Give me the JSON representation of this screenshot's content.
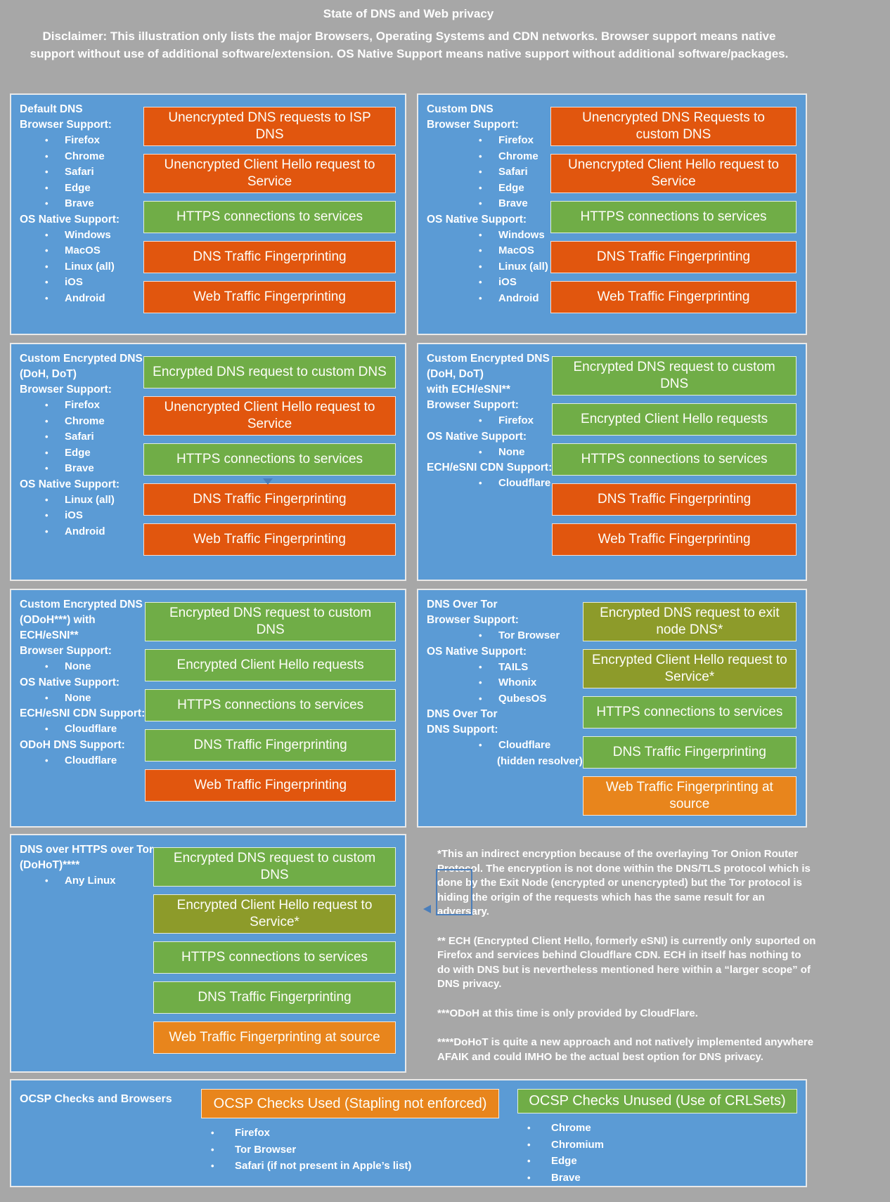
{
  "title": "State of DNS and Web privacy",
  "disclaimer": "Disclaimer: This illustration only lists the major Browsers, Operating Systems and CDN networks. Browser support means native support without use of additional software/extension. OS Native Support means native support without additional software/packages.",
  "colors": {
    "background": "#a7a7a7",
    "panel_blue": "#5b9bd5",
    "bar_bad": "#e1560e",
    "bar_good": "#70ad47",
    "bar_indirect": "#8d9b2a",
    "bar_warn": "#e8851c",
    "artifact_blue": "#4a7ebb",
    "text": "#ffffff"
  },
  "panels": [
    {
      "name": "default-dns",
      "labels": [
        [
          "h",
          "Default DNS"
        ],
        [
          "h",
          "Browser Support:"
        ],
        [
          "b",
          "Firefox"
        ],
        [
          "b",
          "Chrome"
        ],
        [
          "b",
          "Safari"
        ],
        [
          "b",
          "Edge"
        ],
        [
          "b",
          "Brave"
        ],
        [
          "h",
          "OS Native Support:"
        ],
        [
          "b",
          "Windows"
        ],
        [
          "b",
          "MacOS"
        ],
        [
          "b",
          "Linux (all)"
        ],
        [
          "b",
          "iOS"
        ],
        [
          "b",
          "Android"
        ]
      ],
      "bars": [
        [
          "Unencrypted DNS requests to ISP DNS",
          "bad"
        ],
        [
          "Unencrypted Client Hello request to Service",
          "bad"
        ],
        [
          "HTTPS connections to services",
          "good"
        ],
        [
          "DNS Traffic Fingerprinting",
          "bad"
        ],
        [
          "Web Traffic Fingerprinting",
          "bad"
        ]
      ]
    },
    {
      "name": "custom-dns",
      "labels": [
        [
          "h",
          "Custom DNS"
        ],
        [
          "h",
          "Browser Support:"
        ],
        [
          "b",
          "Firefox"
        ],
        [
          "b",
          "Chrome"
        ],
        [
          "b",
          "Safari"
        ],
        [
          "b",
          "Edge"
        ],
        [
          "b",
          "Brave"
        ],
        [
          "h",
          "OS Native Support:"
        ],
        [
          "b",
          "Windows"
        ],
        [
          "b",
          "MacOS"
        ],
        [
          "b",
          "Linux (all)"
        ],
        [
          "b",
          "iOS"
        ],
        [
          "b",
          "Android"
        ]
      ],
      "bars": [
        [
          "Unencrypted DNS Requests to custom DNS",
          "bad"
        ],
        [
          "Unencrypted Client Hello request to Service",
          "bad"
        ],
        [
          "HTTPS connections to services",
          "good"
        ],
        [
          "DNS Traffic Fingerprinting",
          "bad"
        ],
        [
          "Web Traffic Fingerprinting",
          "bad"
        ]
      ]
    },
    {
      "name": "custom-encrypted-dns-doh-dot",
      "labels": [
        [
          "h",
          "Custom Encrypted DNS"
        ],
        [
          "h",
          "(DoH, DoT)"
        ],
        [
          "h",
          "Browser Support:"
        ],
        [
          "b",
          "Firefox"
        ],
        [
          "b",
          "Chrome"
        ],
        [
          "b",
          "Safari"
        ],
        [
          "b",
          "Edge"
        ],
        [
          "b",
          "Brave"
        ],
        [
          "h",
          "OS Native Support:"
        ],
        [
          "b",
          "Linux (all)"
        ],
        [
          "b",
          "iOS"
        ],
        [
          "b",
          "Android"
        ]
      ],
      "bars": [
        [
          "Encrypted DNS request to custom DNS",
          "good"
        ],
        [
          "Unencrypted Client Hello request to Service",
          "bad"
        ],
        [
          "HTTPS connections to services",
          "good"
        ],
        [
          "DNS Traffic Fingerprinting",
          "bad"
        ],
        [
          "Web Traffic Fingerprinting",
          "bad"
        ]
      ]
    },
    {
      "name": "custom-encrypted-dns-doh-dot-ech-esni",
      "labels": [
        [
          "h",
          "Custom Encrypted DNS"
        ],
        [
          "h",
          "(DoH, DoT)"
        ],
        [
          "h",
          "with ECH/eSNI**"
        ],
        [
          "h",
          "Browser Support:"
        ],
        [
          "b",
          "Firefox"
        ],
        [
          "h",
          "OS Native Support:"
        ],
        [
          "b",
          "None"
        ],
        [
          "h",
          "ECH/eSNI CDN Support:"
        ],
        [
          "b",
          "Cloudflare"
        ]
      ],
      "bars": [
        [
          "Encrypted DNS request to custom DNS",
          "good"
        ],
        [
          "Encrypted Client Hello requests",
          "good"
        ],
        [
          "HTTPS connections to services",
          "good"
        ],
        [
          "DNS Traffic Fingerprinting",
          "bad"
        ],
        [
          "Web Traffic Fingerprinting",
          "bad"
        ]
      ]
    },
    {
      "name": "custom-encrypted-dns-odoh-ech-esni",
      "labels": [
        [
          "h",
          "Custom Encrypted DNS"
        ],
        [
          "h",
          "(ODoH***) with"
        ],
        [
          "h",
          "ECH/eSNI**"
        ],
        [
          "h",
          "Browser Support:"
        ],
        [
          "b",
          "None"
        ],
        [
          "h",
          "OS Native Support:"
        ],
        [
          "b",
          "None"
        ],
        [
          "h",
          "ECH/eSNI CDN Support:"
        ],
        [
          "b",
          "Cloudflare"
        ],
        [
          "h",
          "ODoH DNS Support:"
        ],
        [
          "b",
          "Cloudflare"
        ]
      ],
      "bars": [
        [
          "Encrypted DNS request to custom DNS",
          "good"
        ],
        [
          "Encrypted Client Hello requests",
          "good"
        ],
        [
          "HTTPS connections to services",
          "good"
        ],
        [
          "DNS Traffic Fingerprinting",
          "good"
        ],
        [
          "Web Traffic Fingerprinting",
          "bad"
        ]
      ]
    },
    {
      "name": "dns-over-tor",
      "labels": [
        [
          "h",
          "DNS Over Tor"
        ],
        [
          "h",
          "Browser Support:"
        ],
        [
          "b",
          "Tor Browser"
        ],
        [
          "h",
          "OS Native Support:"
        ],
        [
          "b",
          "TAILS"
        ],
        [
          "b",
          "Whonix"
        ],
        [
          "b",
          "QubesOS"
        ],
        [
          "h",
          "DNS Over Tor"
        ],
        [
          "h",
          "DNS Support:"
        ],
        [
          "b",
          "Cloudflare"
        ],
        [
          "s",
          "(hidden resolver)"
        ]
      ],
      "bars": [
        [
          "Encrypted DNS request to exit node DNS*",
          "indirect"
        ],
        [
          "Encrypted Client Hello request to Service*",
          "indirect"
        ],
        [
          "HTTPS connections to services",
          "good"
        ],
        [
          "DNS Traffic Fingerprinting",
          "good"
        ],
        [
          "Web Traffic Fingerprinting at source",
          "warn"
        ]
      ]
    },
    {
      "name": "doh-over-tor",
      "labels": [
        [
          "h",
          "DNS over HTTPS over Tor"
        ],
        [
          "h",
          "(DoHoT)****"
        ],
        [
          "b",
          "Any Linux"
        ]
      ],
      "bars": [
        [
          "Encrypted DNS request to custom DNS",
          "good"
        ],
        [
          "Encrypted Client Hello request to Service*",
          "indirect"
        ],
        [
          "HTTPS connections to services",
          "good"
        ],
        [
          "DNS Traffic Fingerprinting",
          "good"
        ],
        [
          "Web Traffic Fingerprinting at source",
          "warn"
        ]
      ]
    }
  ],
  "footnotes": [
    "*This an indirect encryption because of the overlaying Tor Onion Router Protocol. The encryption is not done within the DNS/TLS protocol which is done by the Exit Node (encrypted or unencrypted) but the Tor protocol is hiding the origin of the requests which has the same result for an adversary.",
    "** ECH (Encrypted Client Hello, formerly eSNI) is currently only suported on Firefox and services behind Cloudflare CDN. ECH in itself has nothing to do with DNS but is nevertheless mentioned here within a “larger scope” of DNS privacy.",
    "***ODoH at this time is only provided by CloudFlare.",
    "****DoHoT is quite a new approach and not natively implemented anywhere AFAIK and could IMHO be the actual best option for DNS privacy."
  ],
  "ocsp": {
    "title": "OCSP Checks and Browsers",
    "groups": [
      {
        "label": "OCSP Checks Used (Stapling not enforced)",
        "color": "warn",
        "items": [
          "Firefox",
          "Tor Browser",
          "Safari (if not present in Apple’s list)"
        ]
      },
      {
        "label": "OCSP Checks Unused (Use of CRLSets)",
        "color": "good",
        "items": [
          "Chrome",
          "Chromium",
          "Edge",
          "Brave"
        ]
      }
    ]
  }
}
